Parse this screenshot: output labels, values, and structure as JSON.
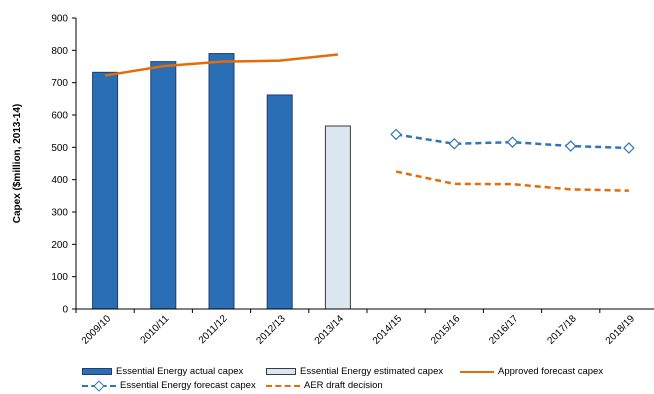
{
  "chart_data": {
    "type": "bar",
    "title": "",
    "xlabel": "",
    "ylabel": "Capex ($million, 2013-14)",
    "ylim": [
      0,
      900
    ],
    "yticks": [
      0,
      100,
      200,
      300,
      400,
      500,
      600,
      700,
      800,
      900
    ],
    "grid": false,
    "legend_position": "bottom",
    "categories": [
      "2009/10",
      "2010/11",
      "2011/12",
      "2012/13",
      "2013/14",
      "2014/15",
      "2015/16",
      "2016/17",
      "2017/18",
      "2018/19"
    ],
    "series": [
      {
        "name": "Essential Energy actual capex",
        "kind": "bar",
        "color": "#2a6fb5",
        "values": [
          732,
          765,
          790,
          662,
          null,
          null,
          null,
          null,
          null,
          null
        ]
      },
      {
        "name": "Essential Energy estimated capex",
        "kind": "bar",
        "color": "#dbe6f1",
        "values": [
          null,
          null,
          null,
          null,
          566,
          null,
          null,
          null,
          null,
          null
        ]
      },
      {
        "name": "Approved forecast capex",
        "kind": "line",
        "style": "solid",
        "color": "#e46c0a",
        "values": [
          722,
          751,
          765,
          768,
          787,
          null,
          null,
          null,
          null,
          null
        ]
      },
      {
        "name": "Essential Energy forecast capex",
        "kind": "line",
        "style": "dashed",
        "marker": "diamond",
        "color": "#2e75b6",
        "values": [
          null,
          null,
          null,
          null,
          null,
          540,
          511,
          516,
          504,
          498
        ]
      },
      {
        "name": "AER draft decision",
        "kind": "line",
        "style": "dashed",
        "color": "#e46c0a",
        "values": [
          null,
          null,
          null,
          null,
          null,
          425,
          387,
          386,
          370,
          366
        ]
      }
    ]
  }
}
